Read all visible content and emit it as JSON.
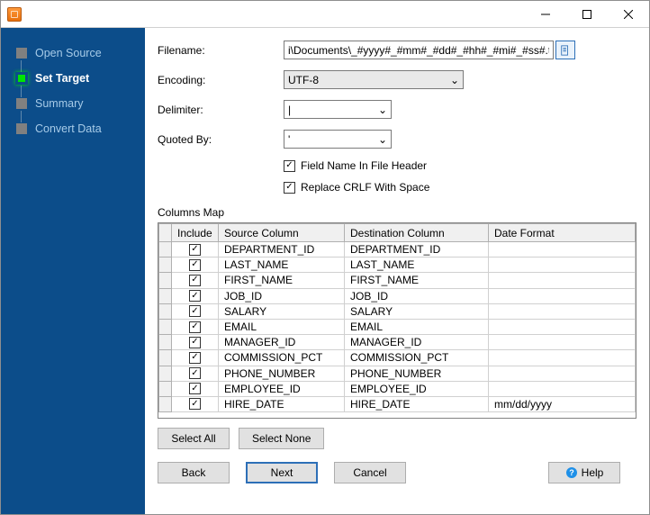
{
  "sidebar": {
    "steps": [
      {
        "label": "Open Source"
      },
      {
        "label": "Set Target"
      },
      {
        "label": "Summary"
      },
      {
        "label": "Convert Data"
      }
    ],
    "activeIndex": 1,
    "bg_color": "#0c4d8a"
  },
  "form": {
    "filename_label": "Filename:",
    "filename_value": "i\\Documents\\_#yyyy#_#mm#_#dd#_#hh#_#mi#_#ss#.txt",
    "encoding_label": "Encoding:",
    "encoding_value": "UTF-8",
    "delimiter_label": "Delimiter:",
    "delimiter_value": "|",
    "quoted_label": "Quoted By:",
    "quoted_value": "'",
    "opt_fieldname": "Field Name In File Header",
    "opt_fieldname_checked": true,
    "opt_replacecrlf": "Replace CRLF With Space",
    "opt_replacecrlf_checked": true
  },
  "columns_map": {
    "label": "Columns Map",
    "headers": {
      "include": "Include",
      "source": "Source Column",
      "dest": "Destination Column",
      "datefmt": "Date Format"
    },
    "rows": [
      {
        "include": true,
        "source": "DEPARTMENT_ID",
        "dest": "DEPARTMENT_ID",
        "datefmt": ""
      },
      {
        "include": true,
        "source": "LAST_NAME",
        "dest": "LAST_NAME",
        "datefmt": ""
      },
      {
        "include": true,
        "source": "FIRST_NAME",
        "dest": "FIRST_NAME",
        "datefmt": ""
      },
      {
        "include": true,
        "source": "JOB_ID",
        "dest": "JOB_ID",
        "datefmt": ""
      },
      {
        "include": true,
        "source": "SALARY",
        "dest": "SALARY",
        "datefmt": ""
      },
      {
        "include": true,
        "source": "EMAIL",
        "dest": "EMAIL",
        "datefmt": ""
      },
      {
        "include": true,
        "source": "MANAGER_ID",
        "dest": "MANAGER_ID",
        "datefmt": ""
      },
      {
        "include": true,
        "source": "COMMISSION_PCT",
        "dest": "COMMISSION_PCT",
        "datefmt": ""
      },
      {
        "include": true,
        "source": "PHONE_NUMBER",
        "dest": "PHONE_NUMBER",
        "datefmt": ""
      },
      {
        "include": true,
        "source": "EMPLOYEE_ID",
        "dest": "EMPLOYEE_ID",
        "datefmt": ""
      },
      {
        "include": true,
        "source": "HIRE_DATE",
        "dest": "HIRE_DATE",
        "datefmt": "mm/dd/yyyy"
      }
    ]
  },
  "buttons": {
    "select_all": "Select All",
    "select_none": "Select None",
    "back": "Back",
    "next": "Next",
    "cancel": "Cancel",
    "help": "Help"
  },
  "icons": {
    "checkmark": "✓",
    "dropdown": "⌄"
  }
}
